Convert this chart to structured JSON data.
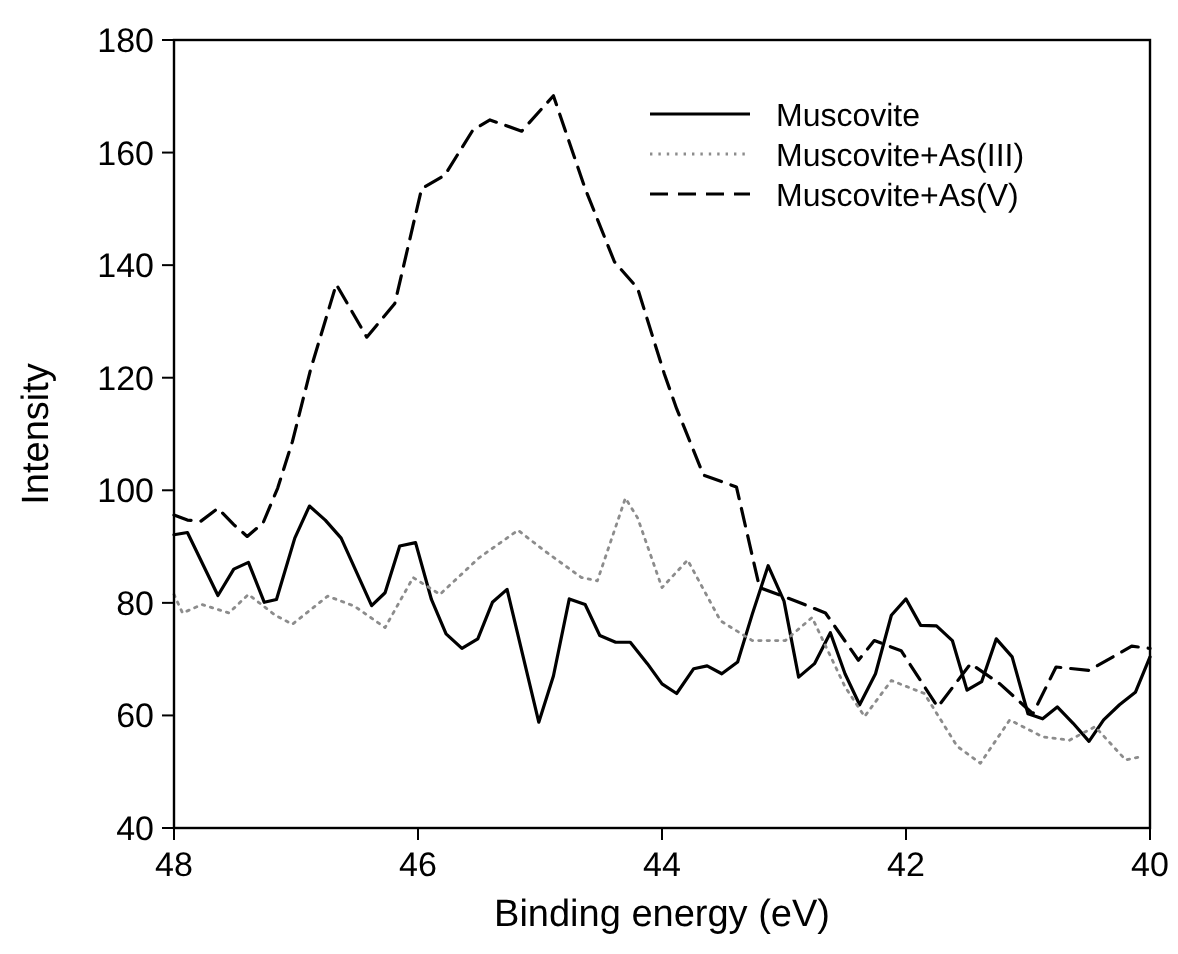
{
  "chart_data": {
    "type": "line",
    "xlabel": "Binding energy (eV)",
    "ylabel": "Intensity",
    "xlim": [
      48,
      40
    ],
    "ylim": [
      40,
      180
    ],
    "xticks": [
      48,
      46,
      44,
      42,
      40
    ],
    "yticks": [
      40,
      60,
      80,
      100,
      120,
      140,
      160,
      180
    ],
    "grid": false,
    "legend": "top right",
    "marker": "none",
    "series": [
      {
        "name": "Muscovite",
        "color": "#000000",
        "line_style": "solid",
        "x": [
          48.0,
          47.89,
          47.64,
          47.51,
          47.39,
          47.26,
          47.16,
          47.01,
          46.89,
          46.76,
          46.63,
          46.38,
          46.27,
          46.15,
          46.02,
          45.89,
          45.77,
          45.64,
          45.51,
          45.39,
          45.27,
          45.01,
          44.89,
          44.76,
          44.63,
          44.51,
          44.38,
          44.26,
          44.12,
          44.0,
          43.88,
          43.74,
          43.63,
          43.51,
          43.38,
          43.26,
          43.13,
          43.0,
          42.88,
          42.75,
          42.62,
          42.5,
          42.38,
          42.25,
          42.12,
          42.0,
          41.88,
          41.75,
          41.62,
          41.5,
          41.38,
          41.26,
          41.13,
          41.0,
          40.88,
          40.76,
          40.63,
          40.5,
          40.38,
          40.25,
          40.12,
          40.0
        ],
        "values": [
          92.1,
          92.5,
          81.3,
          86.0,
          87.2,
          80.1,
          80.6,
          91.5,
          97.2,
          94.7,
          91.5,
          79.5,
          81.8,
          90.1,
          90.7,
          80.6,
          74.5,
          71.9,
          73.6,
          80.1,
          82.4,
          58.8,
          67.0,
          80.7,
          79.7,
          74.2,
          73.0,
          73.0,
          69.2,
          65.6,
          63.9,
          68.3,
          68.8,
          67.4,
          69.5,
          78.0,
          86.6,
          80.3,
          66.8,
          69.2,
          74.7,
          67.4,
          61.9,
          67.4,
          77.8,
          80.7,
          76.0,
          75.9,
          73.3,
          64.5,
          66.0,
          73.6,
          70.4,
          60.3,
          59.4,
          61.5,
          58.6,
          55.4,
          59.2,
          61.9,
          64.1,
          70.4
        ]
      },
      {
        "name": "Muscovite+As(III)",
        "color": "#8c8c8c",
        "line_style": "dotted",
        "x": [
          48.0,
          47.93,
          47.77,
          47.55,
          47.39,
          47.17,
          47.03,
          46.74,
          46.52,
          46.27,
          46.04,
          45.82,
          45.5,
          45.18,
          44.96,
          44.66,
          44.53,
          44.3,
          44.2,
          44.0,
          43.79,
          43.52,
          43.26,
          42.99,
          42.77,
          42.5,
          42.34,
          42.12,
          41.85,
          41.58,
          41.39,
          41.15,
          40.88,
          40.66,
          40.45,
          40.2,
          40.07
        ],
        "values": [
          81.5,
          78.2,
          79.7,
          78.2,
          81.5,
          77.8,
          76.2,
          81.2,
          79.4,
          75.6,
          84.5,
          81.5,
          88.0,
          92.9,
          89.2,
          84.5,
          83.9,
          98.6,
          95.1,
          82.7,
          87.6,
          76.8,
          73.3,
          73.3,
          77.4,
          65.1,
          59.8,
          66.2,
          63.9,
          54.5,
          51.5,
          59.2,
          56.2,
          55.6,
          58.0,
          52.1,
          52.7
        ]
      },
      {
        "name": "Muscovite+As(V)",
        "color": "#000000",
        "line_style": "dashed",
        "x": [
          48.0,
          47.89,
          47.78,
          47.64,
          47.51,
          47.4,
          47.27,
          47.15,
          47.03,
          46.88,
          46.67,
          46.42,
          46.19,
          45.97,
          45.78,
          45.55,
          45.41,
          45.15,
          44.89,
          44.63,
          44.39,
          44.2,
          43.98,
          43.88,
          43.66,
          43.39,
          43.2,
          42.9,
          42.66,
          42.39,
          42.26,
          42.04,
          41.74,
          41.47,
          41.23,
          40.96,
          40.77,
          40.5,
          40.15,
          40.0
        ],
        "values": [
          95.6,
          94.7,
          94.5,
          96.8,
          93.9,
          91.8,
          94.2,
          100.4,
          108.6,
          121.5,
          136.6,
          127.2,
          133.2,
          153.6,
          156.0,
          164.0,
          165.8,
          163.8,
          170.1,
          153.6,
          140.6,
          135.9,
          120.6,
          114.5,
          102.7,
          100.6,
          82.7,
          80.3,
          78.2,
          69.8,
          73.3,
          71.5,
          61.5,
          69.2,
          65.6,
          60.3,
          68.6,
          68.0,
          72.3,
          71.9
        ]
      }
    ]
  }
}
